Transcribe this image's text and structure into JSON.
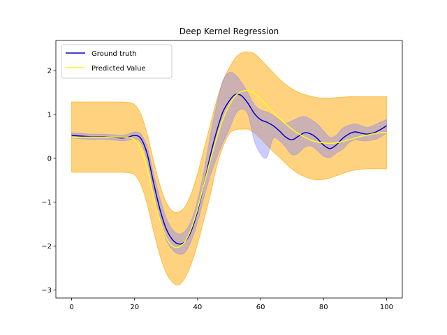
{
  "chart_data": {
    "type": "line",
    "title": "Deep Kernel Regression",
    "xlabel": "",
    "ylabel": "",
    "xlim": [
      -5,
      105
    ],
    "ylim": [
      -3.18,
      2.68
    ],
    "x_ticks": [
      0,
      20,
      40,
      60,
      80,
      100
    ],
    "y_ticks": [
      -3,
      -2,
      -1,
      0,
      1,
      2
    ],
    "grid": false,
    "legend_position": "upper-left",
    "colors": {
      "ground_truth": "#0000cc",
      "ground_truth_band": "#8080ff",
      "predicted": "#ffff1a",
      "predicted_band": "#ffa500",
      "axes": "#000000",
      "background": "#ffffff"
    },
    "x": [
      0,
      2,
      4,
      6,
      8,
      10,
      12,
      14,
      16,
      18,
      20,
      22,
      24,
      26,
      28,
      30,
      32,
      34,
      36,
      38,
      40,
      42,
      44,
      46,
      48,
      50,
      52,
      54,
      56,
      58,
      60,
      62,
      64,
      66,
      68,
      70,
      72,
      74,
      76,
      78,
      80,
      82,
      84,
      86,
      88,
      90,
      92,
      94,
      96,
      98,
      100
    ],
    "series": [
      {
        "name": "Ground truth",
        "role": "line",
        "values": [
          0.52,
          0.51,
          0.5,
          0.49,
          0.49,
          0.49,
          0.48,
          0.47,
          0.46,
          0.48,
          0.52,
          0.45,
          0.1,
          -0.55,
          -1.15,
          -1.6,
          -1.85,
          -1.95,
          -1.9,
          -1.65,
          -1.2,
          -0.6,
          0.05,
          0.6,
          1.05,
          1.3,
          1.45,
          1.42,
          1.25,
          1.02,
          0.88,
          0.82,
          0.74,
          0.62,
          0.48,
          0.42,
          0.5,
          0.58,
          0.55,
          0.45,
          0.3,
          0.22,
          0.3,
          0.45,
          0.55,
          0.6,
          0.57,
          0.55,
          0.58,
          0.65,
          0.74
        ]
      },
      {
        "name": "Predicted Value",
        "role": "line",
        "values": [
          0.47,
          0.47,
          0.48,
          0.48,
          0.48,
          0.48,
          0.48,
          0.48,
          0.48,
          0.47,
          0.42,
          0.2,
          -0.25,
          -0.85,
          -1.4,
          -1.8,
          -2.0,
          -2.02,
          -1.9,
          -1.6,
          -1.15,
          -0.6,
          -0.05,
          0.45,
          0.88,
          1.2,
          1.42,
          1.52,
          1.54,
          1.48,
          1.35,
          1.2,
          1.05,
          0.9,
          0.78,
          0.66,
          0.56,
          0.48,
          0.41,
          0.37,
          0.35,
          0.34,
          0.35,
          0.38,
          0.42,
          0.46,
          0.5,
          0.53,
          0.56,
          0.58,
          0.59
        ]
      },
      {
        "name": "",
        "role": "ground_truth_band",
        "upper": [
          0.58,
          0.57,
          0.56,
          0.55,
          0.55,
          0.55,
          0.54,
          0.53,
          0.52,
          0.55,
          0.6,
          0.55,
          0.25,
          -0.35,
          -0.9,
          -1.35,
          -1.62,
          -1.72,
          -1.66,
          -1.42,
          -0.95,
          -0.3,
          0.5,
          1.2,
          1.75,
          1.95,
          1.9,
          1.72,
          1.48,
          1.22,
          1.1,
          1.05,
          0.98,
          0.88,
          0.8,
          0.85,
          0.92,
          0.95,
          0.88,
          0.78,
          0.62,
          0.48,
          0.52,
          0.68,
          0.75,
          0.78,
          0.74,
          0.7,
          0.75,
          0.82,
          0.88
        ],
        "lower": [
          0.46,
          0.45,
          0.44,
          0.43,
          0.43,
          0.43,
          0.42,
          0.41,
          0.4,
          0.41,
          0.44,
          0.35,
          -0.05,
          -0.75,
          -1.4,
          -1.85,
          -2.08,
          -2.18,
          -2.14,
          -1.88,
          -1.45,
          -0.9,
          -0.4,
          0.0,
          0.35,
          0.65,
          1.0,
          1.12,
          1.0,
          0.4,
          0.1,
          0.02,
          0.45,
          0.4,
          0.25,
          0.08,
          0.12,
          0.25,
          0.28,
          0.18,
          0.05,
          0.02,
          0.12,
          0.2,
          0.35,
          0.42,
          0.4,
          0.4,
          0.42,
          0.48,
          0.58
        ]
      },
      {
        "name": "",
        "role": "predicted_band",
        "upper": [
          1.28,
          1.28,
          1.28,
          1.28,
          1.28,
          1.28,
          1.28,
          1.28,
          1.28,
          1.27,
          1.22,
          1.0,
          0.55,
          -0.05,
          -0.6,
          -1.0,
          -1.2,
          -1.22,
          -1.1,
          -0.8,
          -0.35,
          0.2,
          0.75,
          1.3,
          1.75,
          2.05,
          2.28,
          2.4,
          2.42,
          2.38,
          2.25,
          2.1,
          1.95,
          1.8,
          1.68,
          1.58,
          1.5,
          1.45,
          1.41,
          1.38,
          1.37,
          1.37,
          1.38,
          1.39,
          1.4,
          1.4,
          1.4,
          1.4,
          1.4,
          1.4,
          1.4
        ],
        "lower": [
          -0.32,
          -0.32,
          -0.32,
          -0.32,
          -0.32,
          -0.32,
          -0.32,
          -0.32,
          -0.32,
          -0.33,
          -0.38,
          -0.6,
          -1.05,
          -1.65,
          -2.2,
          -2.6,
          -2.82,
          -2.88,
          -2.72,
          -2.4,
          -1.95,
          -1.4,
          -0.85,
          -0.2,
          0.25,
          0.55,
          0.65,
          0.66,
          0.66,
          0.58,
          0.45,
          0.3,
          0.15,
          0.02,
          -0.12,
          -0.25,
          -0.35,
          -0.42,
          -0.47,
          -0.49,
          -0.48,
          -0.45,
          -0.4,
          -0.35,
          -0.3,
          -0.27,
          -0.25,
          -0.24,
          -0.24,
          -0.24,
          -0.24
        ]
      }
    ]
  }
}
